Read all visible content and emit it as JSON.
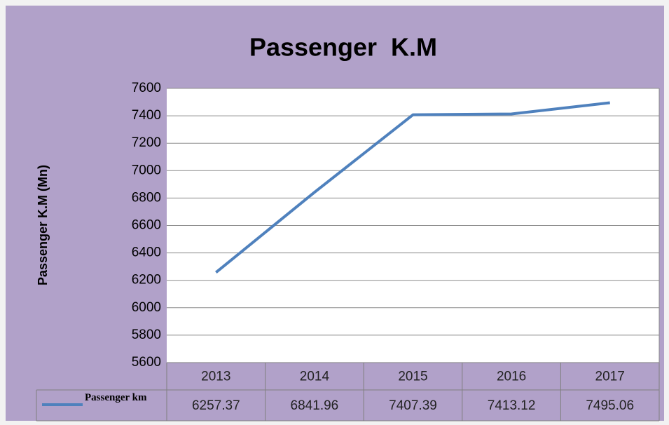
{
  "chart_data": {
    "type": "line",
    "title": "Passenger  K.M",
    "y_label": "Passenger K.M (Mn)",
    "categories": [
      "2013",
      "2014",
      "2015",
      "2016",
      "2017"
    ],
    "series": [
      {
        "name": "Passenger km",
        "color": "#4f81bd",
        "values": [
          6257.37,
          6841.96,
          7407.39,
          7413.12,
          7495.06
        ]
      }
    ],
    "ylim": [
      5600,
      7600
    ],
    "yticks": [
      5600,
      5800,
      6000,
      6200,
      6400,
      6600,
      6800,
      7000,
      7200,
      7400,
      7600
    ],
    "grid": true,
    "data_table": true
  }
}
